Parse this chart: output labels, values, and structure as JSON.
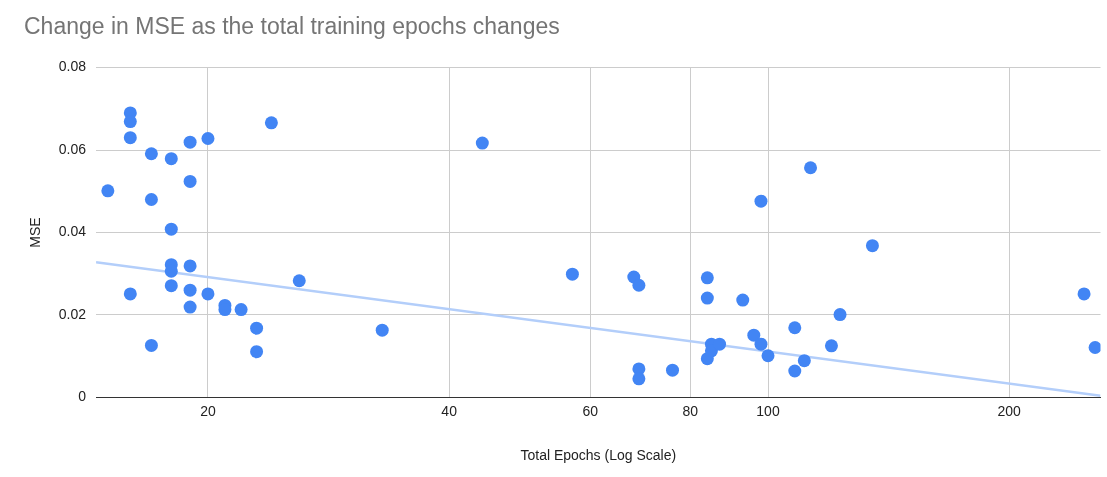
{
  "chart_data": {
    "type": "scatter",
    "title": "Change in MSE as the total training epochs changes",
    "xlabel": "Total Epochs (Log Scale)",
    "ylabel": "MSE",
    "log": "x",
    "xlim": [
      14.5,
      260
    ],
    "xticks": [
      20,
      40,
      60,
      80,
      100,
      200
    ],
    "ylim": [
      0,
      0.08
    ],
    "yticks": [
      0,
      0.02,
      0.04,
      0.06,
      0.08
    ],
    "grid": true,
    "legend": false,
    "marker": "circle",
    "series": [
      {
        "color": "#4285f4",
        "x": [
          15,
          16,
          16,
          16,
          16,
          17,
          17,
          17,
          18,
          18,
          18,
          18,
          18,
          19,
          19,
          19,
          19,
          19,
          20,
          20,
          21,
          21,
          22,
          23,
          23,
          24,
          26,
          33,
          44,
          57,
          68,
          69,
          69,
          69,
          76,
          84,
          84,
          84,
          85,
          85,
          87,
          93,
          96,
          98,
          98,
          100,
          108,
          108,
          111,
          113,
          120,
          123,
          135,
          248,
          256
        ],
        "values": [
          0.0501,
          0.069,
          0.0669,
          0.063,
          0.0251,
          0.0591,
          0.048,
          0.0126,
          0.0579,
          0.0408,
          0.0322,
          0.0306,
          0.0271,
          0.0619,
          0.0524,
          0.0319,
          0.026,
          0.0219,
          0.0628,
          0.0251,
          0.0223,
          0.0213,
          0.0213,
          0.0168,
          0.0111,
          0.0666,
          0.0283,
          0.0163,
          0.0617,
          0.0299,
          0.0292,
          0.0272,
          0.0069,
          0.0045,
          0.0066,
          0.029,
          0.0241,
          0.0094,
          0.0129,
          0.0113,
          0.0129,
          0.0236,
          0.0151,
          0.0476,
          0.0129,
          0.0101,
          0.0169,
          0.0064,
          0.0089,
          0.0557,
          0.0125,
          0.0201,
          0.0368,
          0.0251,
          0.0121
        ]
      },
      {
        "type": "line",
        "color": "#b3cefa",
        "x": [
          14.5,
          260
        ],
        "values": [
          0.0328,
          0.0004
        ],
        "marker": "none"
      }
    ]
  }
}
